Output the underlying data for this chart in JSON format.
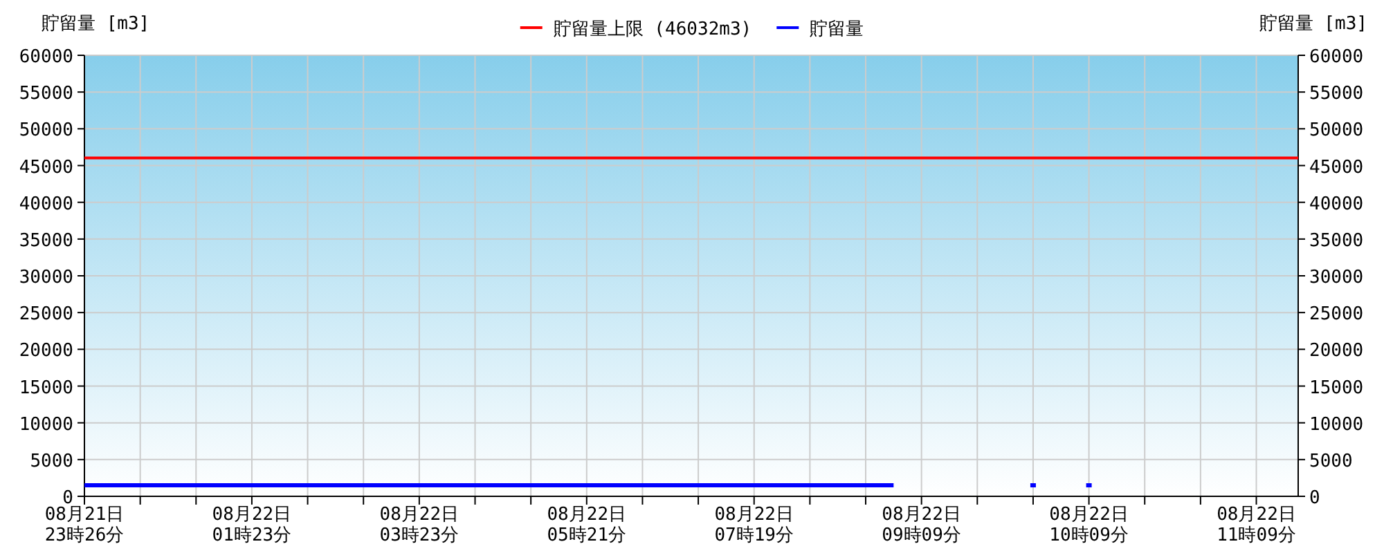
{
  "chart_data": {
    "type": "line",
    "ylabel": "貯留量 [m3]",
    "y2label": "貯留量 [m3]",
    "categories": [
      "08月21日\n23時26分",
      null,
      null,
      null,
      null,
      null,
      "08月22日\n01時23分",
      null,
      null,
      null,
      null,
      null,
      "08月22日\n03時23分",
      null,
      null,
      null,
      null,
      null,
      "08月22日\n05時21分",
      null,
      null,
      null,
      null,
      null,
      "08月22日\n07時19分",
      null,
      null,
      null,
      null,
      null,
      "08月22日\n09時09分",
      null,
      null,
      null,
      null,
      null,
      "08月22日\n10時09分",
      null,
      null,
      null,
      null,
      null,
      "08月22日\n11時09分",
      null
    ],
    "series": [
      {
        "name": "貯留量",
        "color": "#0000ff",
        "values": [
          1500,
          1500,
          1500,
          1500,
          1500,
          1500,
          1500,
          1500,
          1500,
          1500,
          1500,
          1500,
          1500,
          1500,
          1500,
          1500,
          1500,
          1500,
          1500,
          1500,
          1500,
          1500,
          1500,
          1500,
          1500,
          1500,
          1500,
          1500,
          1500,
          1500,
          null,
          null,
          null,
          null,
          1500,
          null,
          1500,
          null,
          null,
          null,
          null,
          null,
          null,
          null
        ]
      }
    ],
    "ref_lines": [
      {
        "axis": "y",
        "value": 46032,
        "label": "貯留量上限 (46032m3)",
        "color": "#ff0000"
      }
    ],
    "ylim": [
      0,
      60000
    ],
    "yticks": [
      0,
      5000,
      10000,
      15000,
      20000,
      25000,
      30000,
      35000,
      40000,
      45000,
      50000,
      55000,
      60000
    ],
    "y2lim": [
      0,
      60000
    ],
    "y2ticks": [
      0,
      5000,
      10000,
      15000,
      20000,
      25000,
      30000,
      35000,
      40000,
      45000,
      50000,
      55000,
      60000
    ],
    "grid": true,
    "legend": "top",
    "line_style": "solid"
  }
}
